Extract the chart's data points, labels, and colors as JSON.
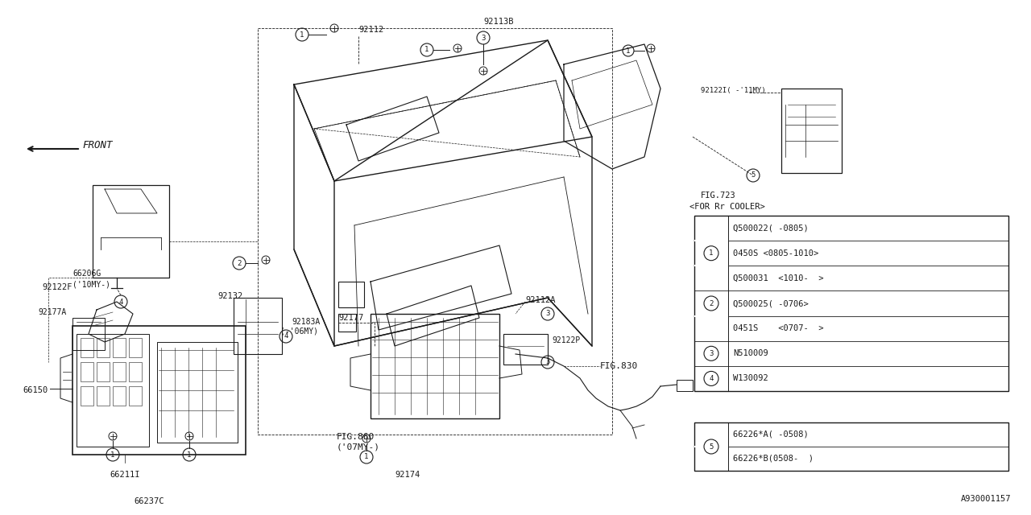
{
  "bg_color": "#ffffff",
  "line_color": "#1a1a1a",
  "diagram_id": "A930001157",
  "fig_ref1": "FIG.723",
  "fig_ref1_sub": "<FOR Rr COOLER>",
  "fig_ref2": "FIG.830",
  "fig_ref3": "FIG.860",
  "fig_ref3_sub": "('07MY-)",
  "front_label": "FRONT",
  "table1_rows": [
    {
      "circle": "",
      "text": "Q500022( -0805)"
    },
    {
      "circle": "1",
      "text": "0450S <0805-1010>"
    },
    {
      "circle": "",
      "text": "Q500031  <1010-  >"
    },
    {
      "circle": "2",
      "text": "Q500025( -0706>"
    },
    {
      "circle": "",
      "text": "0451S    <0707-  >"
    },
    {
      "circle": "3",
      "text": "N510009"
    },
    {
      "circle": "4",
      "text": "W130092"
    }
  ],
  "table2_rows": [
    {
      "circle": "5",
      "text": "66226*A( -0508)"
    },
    {
      "circle": "",
      "text": "66226*B(0508-  )"
    }
  ]
}
